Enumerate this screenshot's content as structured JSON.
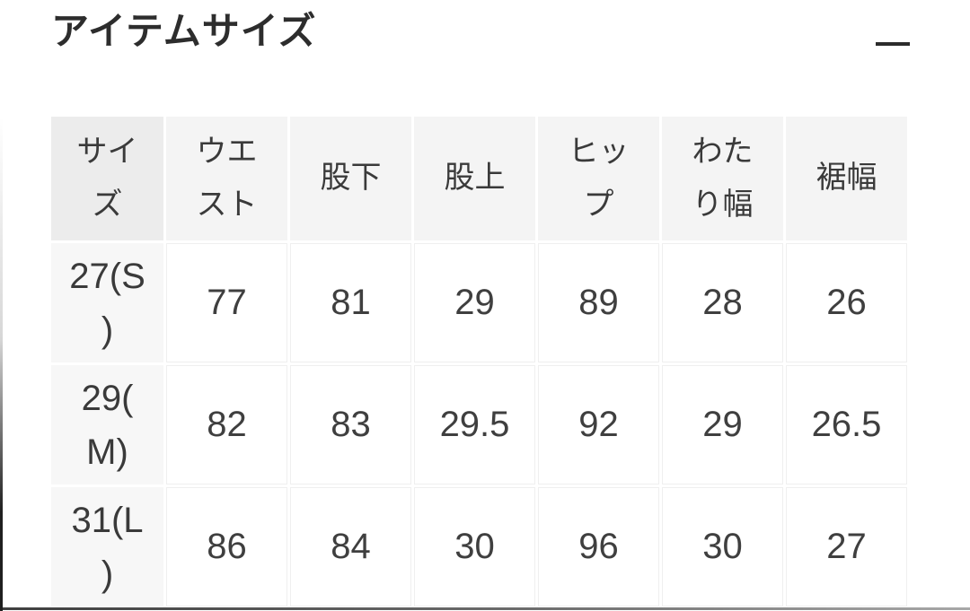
{
  "panel": {
    "title": "アイテムサイズ",
    "collapse_icon": "minus"
  },
  "size_table": {
    "columns": [
      {
        "label": "サイズ",
        "display": "サイ\nズ"
      },
      {
        "label": "ウエスト",
        "display": "ウエ\nスト"
      },
      {
        "label": "股下",
        "display": "股下"
      },
      {
        "label": "股上",
        "display": "股上"
      },
      {
        "label": "ヒップ",
        "display": "ヒッ\nプ"
      },
      {
        "label": "わたり幅",
        "display": "わた\nり幅"
      },
      {
        "label": "裾幅",
        "display": "裾幅"
      }
    ],
    "rows": [
      {
        "size": "27(S)",
        "size_display": "27(S\n)",
        "values": [
          "77",
          "81",
          "29",
          "89",
          "28",
          "26"
        ]
      },
      {
        "size": "29(M)",
        "size_display": "29(\nM)",
        "values": [
          "82",
          "83",
          "29.5",
          "92",
          "29",
          "26.5"
        ]
      },
      {
        "size": "31(L)",
        "size_display": "31(L\n)",
        "values": [
          "86",
          "84",
          "30",
          "96",
          "30",
          "27"
        ]
      }
    ]
  },
  "colors": {
    "header_bg": "#f4f4f4",
    "header_first_bg": "#ececec",
    "row_label_bg": "#f7f7f7",
    "cell_border": "#efefef",
    "title_text": "#2d2d2d",
    "cell_text": "#3f3f3f"
  }
}
